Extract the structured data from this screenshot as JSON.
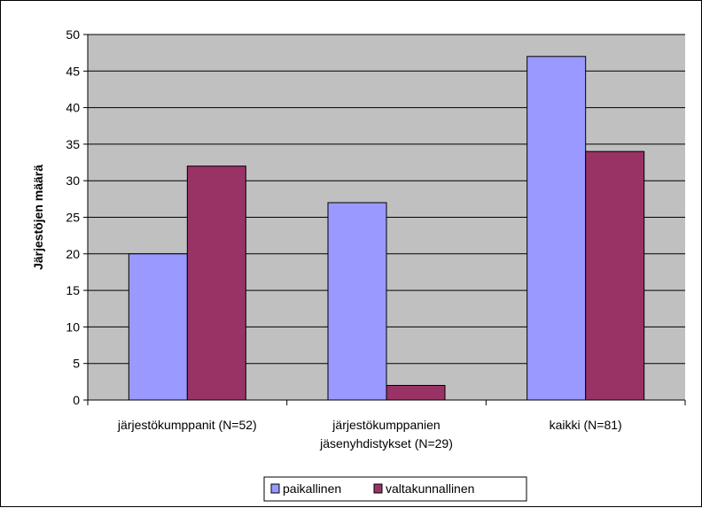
{
  "chart_data": {
    "type": "bar",
    "title": "",
    "xlabel": "",
    "ylabel": "Järjestöjen määrä",
    "ylim": [
      0,
      50
    ],
    "yticks": [
      0,
      5,
      10,
      15,
      20,
      25,
      30,
      35,
      40,
      45,
      50
    ],
    "categories": [
      [
        "järjestökumppanit (N=52)"
      ],
      [
        "järjestökumppanien",
        "jäsenyhdistykset (N=29)"
      ],
      [
        "kaikki (N=81)"
      ]
    ],
    "series": [
      {
        "name": "paikallinen",
        "values": [
          20,
          27,
          47
        ],
        "color": "#9999ff"
      },
      {
        "name": "valtakunnallinen",
        "values": [
          32,
          2,
          34
        ],
        "color": "#993366"
      }
    ],
    "grid": true,
    "plot_background": "#c0c0c0",
    "legend": "bottom"
  }
}
